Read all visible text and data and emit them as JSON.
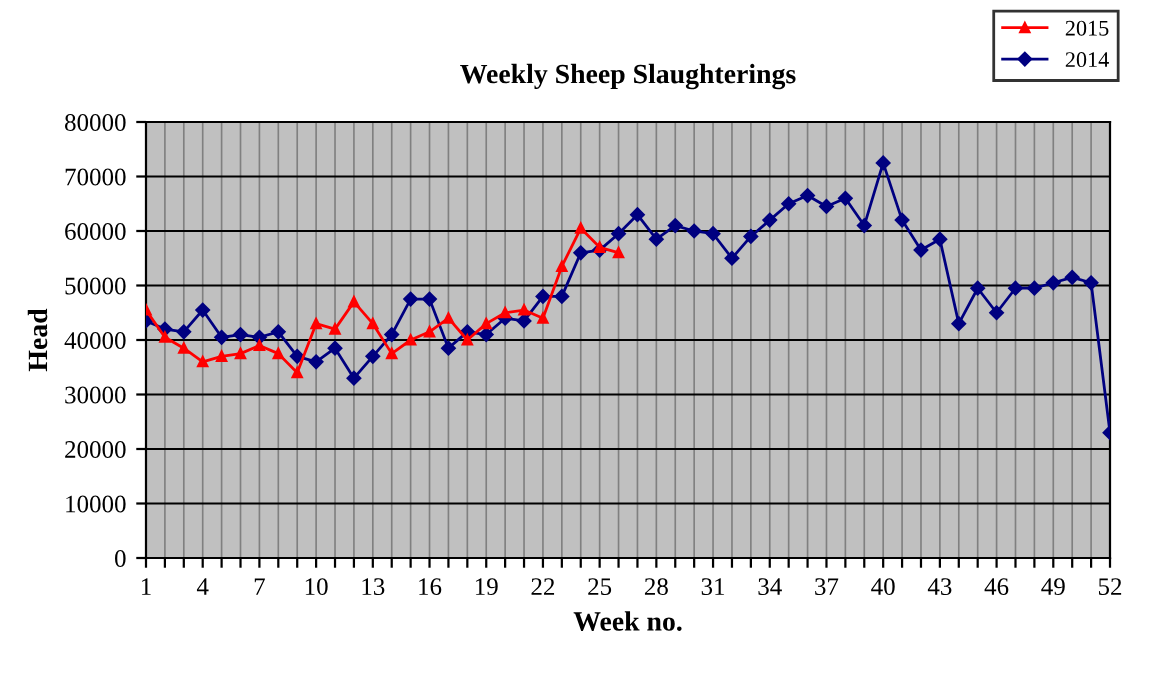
{
  "chart_data": {
    "type": "line",
    "title": "Weekly Sheep Slaughterings",
    "xlabel": "Week no.",
    "ylabel": "Head",
    "categories": [
      "1",
      null,
      null,
      "4",
      null,
      null,
      "7",
      null,
      null,
      "10",
      null,
      null,
      "13",
      null,
      null,
      "16",
      null,
      null,
      "19",
      null,
      null,
      "22",
      null,
      null,
      "25",
      null,
      null,
      "28",
      null,
      null,
      "31",
      null,
      null,
      "34",
      null,
      null,
      "37",
      null,
      null,
      "40",
      null,
      null,
      "43",
      null,
      null,
      "46",
      null,
      null,
      "49",
      null,
      null,
      "52"
    ],
    "series": [
      {
        "name": "2015",
        "color": "#ff0000",
        "marker": "triangle",
        "values": [
          45500,
          40500,
          38500,
          36000,
          37000,
          37500,
          39000,
          37500,
          34000,
          43000,
          42000,
          47000,
          43000,
          37500,
          40000,
          41500,
          44000,
          40000,
          43000,
          45000,
          45500,
          44000,
          53500,
          60500,
          57000,
          56000,
          null,
          null,
          null,
          null,
          null,
          null,
          null,
          null,
          null,
          null,
          null,
          null,
          null,
          null,
          null,
          null,
          null,
          null,
          null,
          null,
          null,
          null,
          null,
          null,
          null,
          null
        ]
      },
      {
        "name": "2014",
        "color": "#000080",
        "marker": "diamond",
        "values": [
          43500,
          42000,
          41500,
          45500,
          40500,
          41000,
          40500,
          41500,
          37000,
          36000,
          38500,
          33000,
          37000,
          41000,
          47500,
          47500,
          38500,
          41500,
          41000,
          44000,
          43500,
          48000,
          48000,
          56000,
          56500,
          59500,
          63000,
          58500,
          61000,
          60000,
          59500,
          55000,
          59000,
          62000,
          65000,
          66500,
          64500,
          66000,
          61000,
          72500,
          62000,
          56500,
          58500,
          43000,
          49500,
          45000,
          49500,
          49500,
          50500,
          51500,
          50500,
          23000
        ]
      }
    ],
    "ylim": [
      0,
      80000
    ],
    "yticks": [
      0,
      10000,
      20000,
      30000,
      40000,
      50000,
      60000,
      70000,
      80000
    ],
    "grid": true,
    "legend": "top right"
  }
}
